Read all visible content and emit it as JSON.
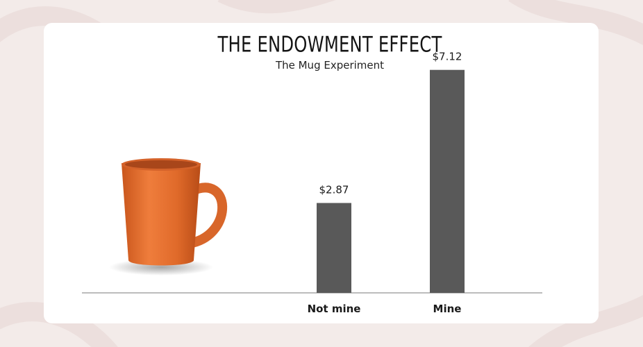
{
  "chart_data": {
    "type": "bar",
    "title": "THE ENDOWMENT EFFECT",
    "subtitle": "The Mug Experiment",
    "categories": [
      "Not mine",
      "Mine"
    ],
    "values": [
      2.87,
      7.12
    ],
    "value_labels": [
      "$2.87",
      "$7.12"
    ],
    "xlabel": "",
    "ylabel": "",
    "ylim": [
      0,
      8
    ],
    "grid": false,
    "bar_color": "#595959"
  },
  "illustration": {
    "icon": "orange-mug-icon",
    "mug_color": "#e56f2e"
  },
  "background_color": "#f3ebe9"
}
